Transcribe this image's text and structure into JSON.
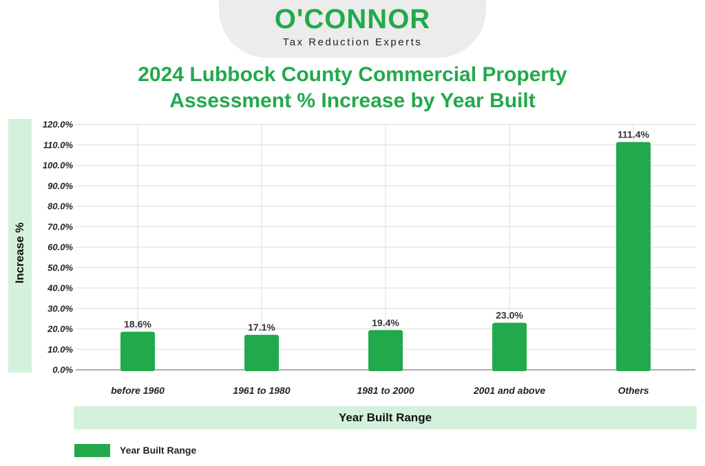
{
  "logo": {
    "name": "O'CONNOR",
    "tagline": "Tax Reduction Experts"
  },
  "colors": {
    "brand": "#22a94b",
    "bar": "#22a94b",
    "band": "#d4f1dc",
    "grid": "#dcdcdc"
  },
  "chart_data": {
    "type": "bar",
    "title": "2024 Lubbock County Commercial Property Assessment % Increase by Year Built",
    "title_lines": [
      "2024 Lubbock County Commercial Property",
      "Assessment % Increase by Year Built"
    ],
    "xlabel": "Year Built Range",
    "ylabel": "Increase %",
    "categories": [
      "before 1960",
      "1961 to 1980",
      "1981 to 2000",
      "2001 and above",
      "Others"
    ],
    "series": [
      {
        "name": "Year Built Range",
        "values": [
          18.6,
          17.1,
          19.4,
          23.0,
          111.4
        ]
      }
    ],
    "data_labels": [
      "18.6%",
      "17.1%",
      "19.4%",
      "23.0%",
      "111.4%"
    ],
    "ylim": [
      0,
      120
    ],
    "yticks": [
      0,
      10,
      20,
      30,
      40,
      50,
      60,
      70,
      80,
      90,
      100,
      110,
      120
    ],
    "ytick_labels": [
      "0.0%",
      "10.0%",
      "20.0%",
      "30.0%",
      "40.0%",
      "50.0%",
      "60.0%",
      "70.0%",
      "80.0%",
      "90.0%",
      "100.0%",
      "110.0%",
      "120.0%"
    ],
    "grid": true,
    "legend": "bottom-left"
  }
}
